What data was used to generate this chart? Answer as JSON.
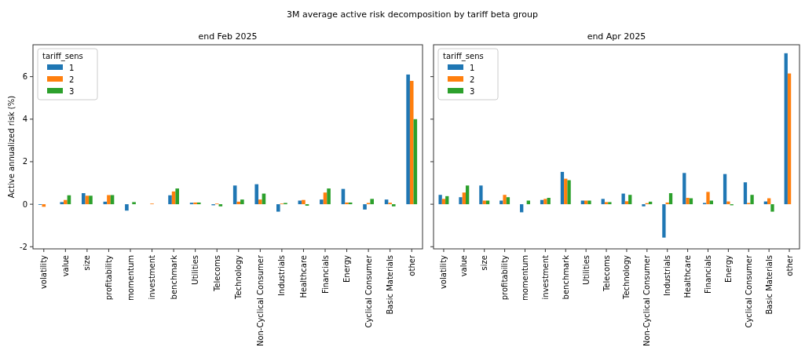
{
  "chart_data": [
    {
      "type": "bar",
      "title": "3M average active risk decomposition by tariff beta group",
      "subtitle": "end Feb 2025",
      "ylabel": "Active annualized risk (%)",
      "legend_title": "tariff_sens",
      "legend": "top left",
      "categories": [
        "volatility",
        "value",
        "size",
        "profitability",
        "momentum",
        "investment",
        "benchmark",
        "Utilities",
        "Telecoms",
        "Technology",
        "Non-Cyclical Consumer",
        "Industrials",
        "Healthcare",
        "Financials",
        "Energy",
        "Cyclical Consumer",
        "Basic Materials",
        "other"
      ],
      "ylim": [
        -2.1,
        7.5
      ],
      "yticks": [
        -2,
        0,
        2,
        4,
        6
      ],
      "series": [
        {
          "name": "1",
          "color": "#1f77b4",
          "values": [
            -0.03,
            0.1,
            0.52,
            0.12,
            -0.3,
            null,
            0.42,
            0.07,
            -0.05,
            0.88,
            0.94,
            -0.35,
            0.17,
            0.22,
            0.72,
            -0.25,
            0.22,
            6.1
          ]
        },
        {
          "name": "2",
          "color": "#ff7f0e",
          "values": [
            -0.12,
            0.2,
            0.4,
            0.43,
            0.0,
            0.03,
            0.6,
            0.08,
            0.03,
            0.12,
            0.22,
            0.03,
            0.2,
            0.55,
            0.08,
            0.06,
            0.07,
            5.8
          ]
        },
        {
          "name": "3",
          "color": "#2ca02c",
          "values": [
            null,
            0.42,
            0.4,
            0.43,
            0.1,
            0.0,
            0.74,
            0.08,
            -0.1,
            0.22,
            0.5,
            0.06,
            -0.07,
            0.74,
            0.08,
            0.25,
            -0.1,
            4.0
          ]
        }
      ]
    },
    {
      "type": "bar",
      "title": "end Apr 2025",
      "legend_title": "tariff_sens",
      "legend": "top left",
      "tick_labels": "x",
      "categories": [
        "volatility",
        "value",
        "size",
        "profitability",
        "momentum",
        "investment",
        "benchmark",
        "Utilities",
        "Telecoms",
        "Technology",
        "Non-Cyclical Consumer",
        "Industrials",
        "Healthcare",
        "Financials",
        "Energy",
        "Cyclical Consumer",
        "Basic Materials",
        "other"
      ],
      "ylim": [
        -2.1,
        7.5
      ],
      "yticks": [
        -2,
        0,
        2,
        4,
        6
      ],
      "series": [
        {
          "name": "1",
          "color": "#1f77b4",
          "values": [
            0.44,
            0.33,
            0.88,
            0.17,
            -0.38,
            0.2,
            1.52,
            0.17,
            0.25,
            0.5,
            -0.1,
            -1.57,
            1.47,
            0.06,
            1.42,
            1.03,
            0.13,
            7.1
          ]
        },
        {
          "name": "2",
          "color": "#ff7f0e",
          "values": [
            0.25,
            0.55,
            0.17,
            0.44,
            null,
            0.25,
            1.2,
            0.17,
            0.1,
            0.14,
            0.05,
            0.08,
            0.3,
            0.58,
            0.13,
            0.06,
            0.28,
            6.15
          ]
        },
        {
          "name": "3",
          "color": "#2ca02c",
          "values": [
            0.38,
            0.88,
            0.17,
            0.33,
            0.17,
            0.3,
            1.13,
            0.17,
            0.1,
            0.44,
            0.12,
            0.52,
            0.28,
            0.17,
            -0.05,
            0.44,
            -0.35,
            null
          ]
        }
      ]
    }
  ]
}
